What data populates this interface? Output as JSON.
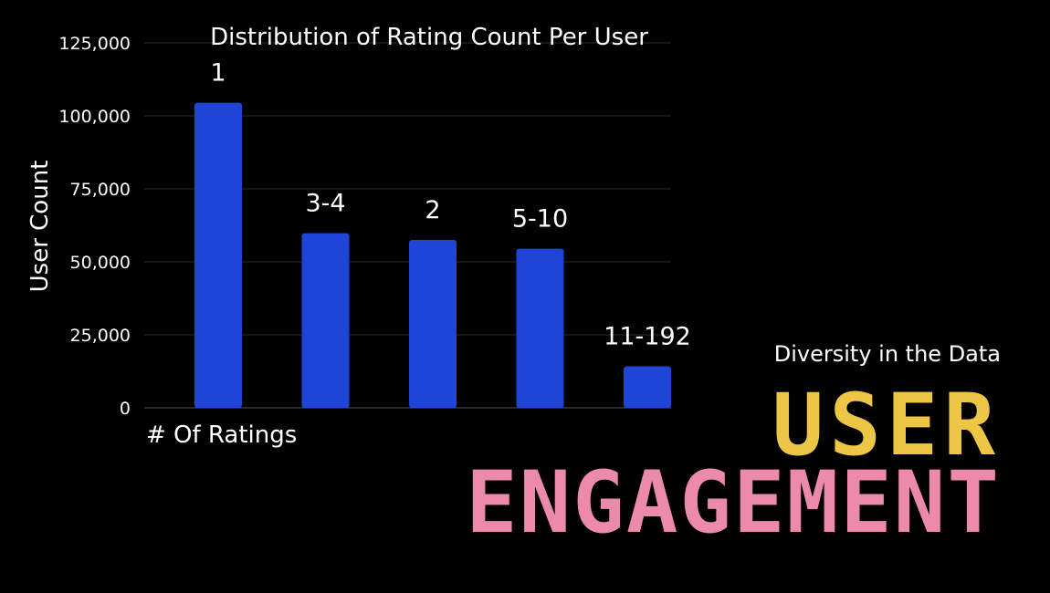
{
  "chart_data": {
    "type": "bar",
    "title": "Distribution of Rating Count Per User",
    "xlabel": "# Of Ratings",
    "ylabel": "User Count",
    "categories": [
      "1",
      "3-4",
      "2",
      "5-10",
      "11-192"
    ],
    "values": [
      104500,
      59800,
      57500,
      54500,
      14200
    ],
    "ylim": [
      0,
      125000
    ],
    "yticks": [
      "0",
      "25,000",
      "50,000",
      "75,000",
      "100,000",
      "125,000"
    ],
    "yticks_values": [
      0,
      25000,
      50000,
      75000,
      100000,
      125000
    ],
    "grid": true,
    "bar_color": "#1e44d8"
  },
  "side_text": {
    "subtitle": "Diversity in the Data",
    "headline_line1": "USER",
    "headline_line2": "ENGAGEMENT",
    "headline_line1_color": "#eec645",
    "headline_line2_color": "#ec8aab"
  }
}
